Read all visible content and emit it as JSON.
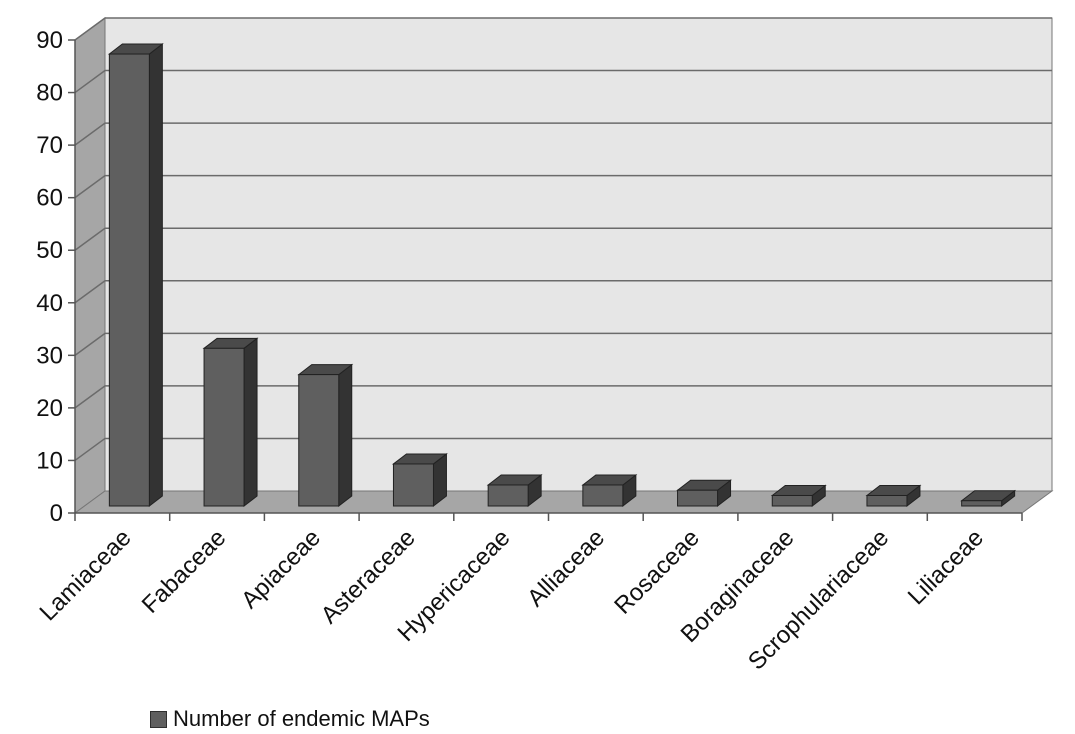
{
  "chart_data": {
    "type": "bar",
    "categories": [
      "Lamiaceae",
      "Fabaceae",
      "Apiaceae",
      "Asteraceae",
      "Hypericaceae",
      "Alliaceae",
      "Rosaceae",
      "Boraginaceae",
      "Scrophulariaceae",
      "Liliaceae"
    ],
    "series": [
      {
        "name": "Number of endemic MAPs",
        "values": [
          86,
          30,
          25,
          8,
          4,
          4,
          3,
          2,
          2,
          1
        ]
      }
    ],
    "ylim": [
      0,
      90
    ],
    "yticks": [
      0,
      10,
      20,
      30,
      40,
      50,
      60,
      70,
      80,
      90
    ],
    "grid": true,
    "legend_position": "bottom-left",
    "colors": {
      "bar_front": "#5f5f5f",
      "bar_side": "#333333",
      "bar_top": "#4a4a4a",
      "wall": "#e6e6e6",
      "side_wall": "#a6a6a6",
      "floor": "#a6a6a6"
    }
  }
}
